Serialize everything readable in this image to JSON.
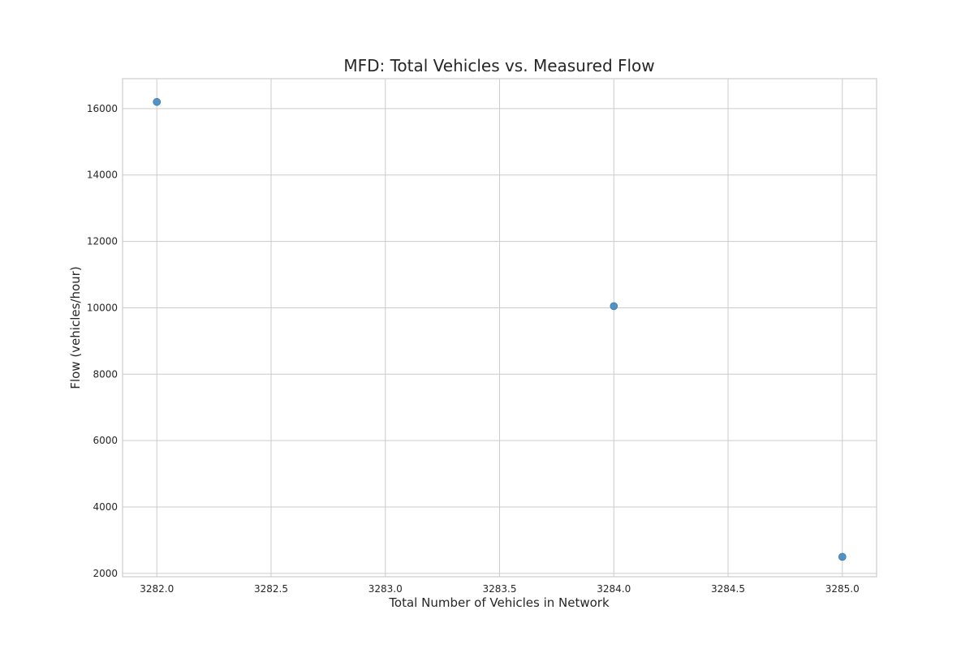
{
  "chart_data": {
    "type": "scatter",
    "title": "MFD: Total Vehicles vs. Measured Flow",
    "xlabel": "Total Number of Vehicles in Network",
    "ylabel": "Flow (vehicles/hour)",
    "xlim": [
      3281.85,
      3285.15
    ],
    "ylim": [
      1900,
      16900
    ],
    "xticks": [
      3282.0,
      3282.5,
      3283.0,
      3283.5,
      3284.0,
      3284.5,
      3285.0
    ],
    "xtick_labels": [
      "3282.0",
      "3282.5",
      "3283.0",
      "3283.5",
      "3284.0",
      "3284.5",
      "3285.0"
    ],
    "yticks": [
      2000,
      4000,
      6000,
      8000,
      10000,
      12000,
      14000,
      16000
    ],
    "ytick_labels": [
      "2000",
      "4000",
      "6000",
      "8000",
      "10000",
      "12000",
      "14000",
      "16000"
    ],
    "grid": true,
    "marker_color": "#3f87c2",
    "points": [
      {
        "x": 3282,
        "y": 16200
      },
      {
        "x": 3284,
        "y": 10050
      },
      {
        "x": 3285,
        "y": 2500
      }
    ]
  }
}
